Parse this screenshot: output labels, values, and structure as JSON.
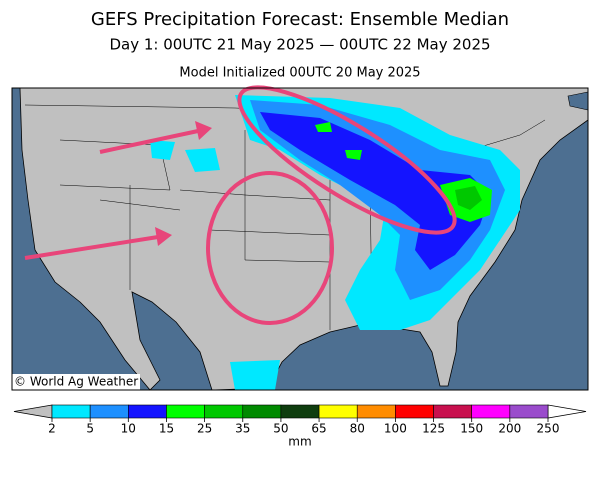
{
  "header": {
    "title": "GEFS Precipitation Forecast: Ensemble Median",
    "subtitle": "Day 1: 00UTC 21 May 2025 — 00UTC 22 May 2025",
    "initialized": "Model Initialized 00UTC 20 May 2025"
  },
  "map": {
    "credit": "© World Ag Weather"
  },
  "colorbar": {
    "ticks": [
      2,
      5,
      10,
      15,
      25,
      35,
      50,
      65,
      80,
      100,
      125,
      150,
      200,
      250
    ],
    "colors": [
      "#00e8ff",
      "#1e90ff",
      "#1414ff",
      "#00ff00",
      "#00c800",
      "#008a00",
      "#0f3d0f",
      "#ffff00",
      "#ff8c00",
      "#ff0000",
      "#c8104e",
      "#ff00ff",
      "#9a4ccc"
    ],
    "unit": "mm"
  }
}
